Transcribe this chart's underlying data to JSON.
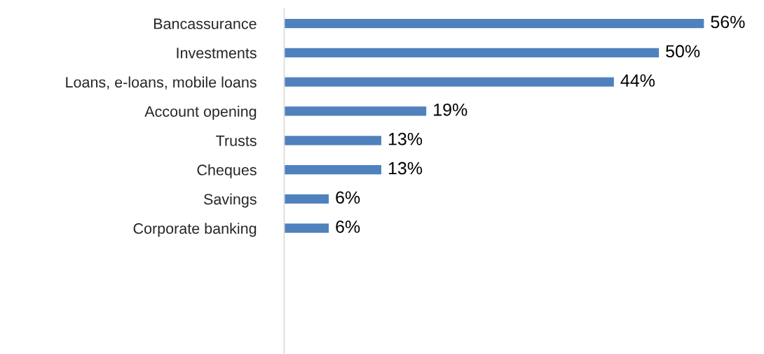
{
  "chart_data": {
    "type": "bar",
    "orientation": "horizontal",
    "categories": [
      "Bancassurance",
      "Investments",
      "Loans, e-loans, mobile loans",
      "Account opening",
      "Trusts",
      "Cheques",
      "Savings",
      "Corporate banking"
    ],
    "values": [
      56,
      50,
      44,
      19,
      13,
      13,
      6,
      6
    ],
    "value_labels": [
      "56%",
      "50%",
      "44%",
      "19%",
      "13%",
      "13%",
      "6%",
      "6%"
    ],
    "color": "#4f81bd",
    "grid": false,
    "legend": false
  }
}
